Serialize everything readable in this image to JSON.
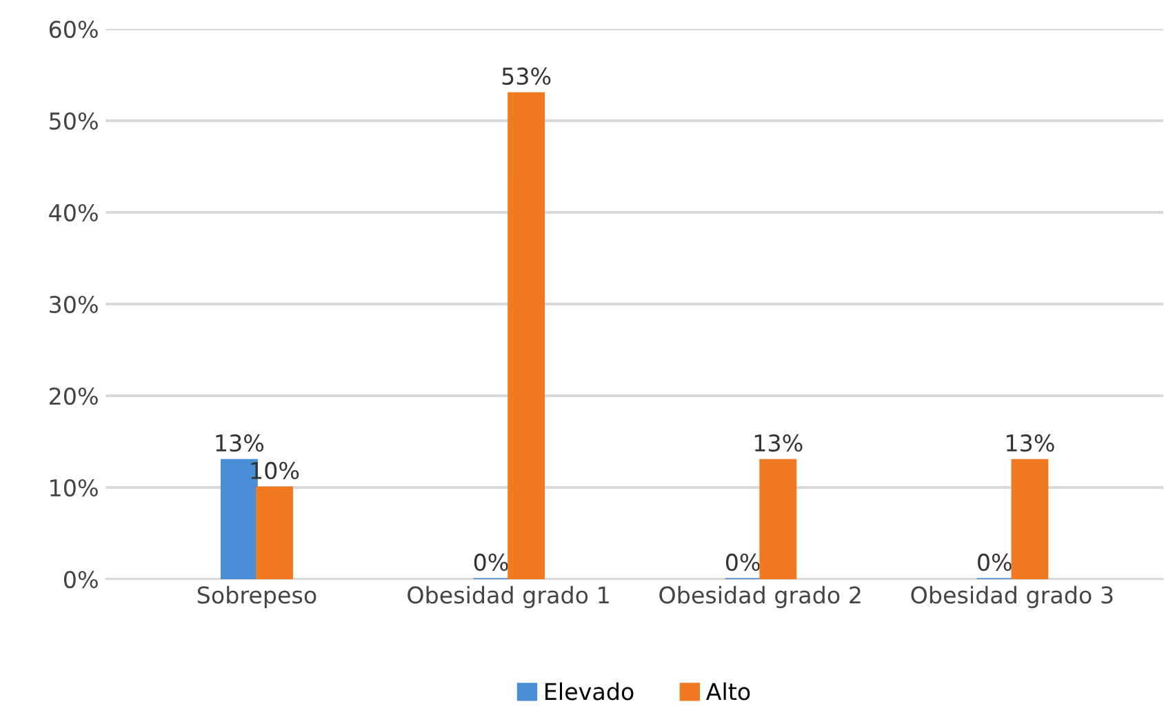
{
  "chart_data": {
    "type": "bar",
    "categories": [
      "Sobrepeso",
      "Obesidad grado 1",
      "Obesidad grado 2",
      "Obesidad grado 3"
    ],
    "series": [
      {
        "name": "Elevado",
        "color": "#4a8fd6",
        "values": [
          13,
          0,
          0,
          0
        ],
        "value_labels": [
          "13%",
          "0%",
          "0%",
          "0%"
        ]
      },
      {
        "name": "Alto",
        "color": "#f07a22",
        "values": [
          10,
          53,
          13,
          13
        ],
        "value_labels": [
          "10%",
          "53%",
          "13%",
          "13%"
        ]
      }
    ],
    "ylim": [
      0,
      60
    ],
    "yticks": [
      {
        "value": 0,
        "label": "0%"
      },
      {
        "value": 10,
        "label": "10%"
      },
      {
        "value": 20,
        "label": "20%"
      },
      {
        "value": 30,
        "label": "30%"
      },
      {
        "value": 40,
        "label": "40%"
      },
      {
        "value": 50,
        "label": "50%"
      },
      {
        "value": 60,
        "label": "60%"
      }
    ],
    "grid": "y",
    "legend": "bottom"
  }
}
